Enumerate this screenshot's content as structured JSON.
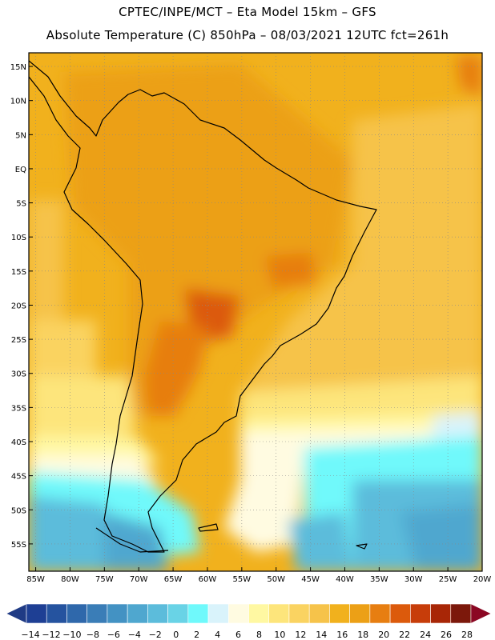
{
  "title": {
    "line1": "CPTEC/INPE/MCT –  Eta Model 15km – GFS",
    "line2": "Absolute Temperature (C) 850hPa – 08/03/2021 12UTC fct=261h"
  },
  "map": {
    "lat_labels": [
      "15N",
      "10N",
      "5N",
      "EQ",
      "5S",
      "10S",
      "15S",
      "20S",
      "25S",
      "30S",
      "35S",
      "40S",
      "45S",
      "50S",
      "55S"
    ],
    "lon_labels": [
      "85W",
      "80W",
      "75W",
      "70W",
      "65W",
      "60W",
      "55W",
      "50W",
      "45W",
      "40W",
      "35W",
      "30W",
      "25W",
      "20W"
    ],
    "lat_range": [
      17,
      -59
    ],
    "lon_range": [
      -86,
      -20
    ],
    "gridlines": true
  },
  "colorbar": {
    "labels": [
      "-14",
      "-12",
      "-10",
      "-8",
      "-6",
      "-4",
      "-2",
      "0",
      "2",
      "4",
      "6",
      "8",
      "10",
      "12",
      "14",
      "16",
      "18",
      "20",
      "22",
      "24",
      "26",
      "28"
    ],
    "colors": [
      "#1e3f94",
      "#25539f",
      "#2f68ab",
      "#3a7db7",
      "#4392c3",
      "#4fa7cf",
      "#5cbcdb",
      "#69d3e6",
      "#6ff9fb",
      "#d9f3fb",
      "#fffbe1",
      "#fff8a2",
      "#fde57b",
      "#fad361",
      "#f6c34a",
      "#f1b11d",
      "#eca016",
      "#e77e11",
      "#dc5a0c",
      "#c73d0a",
      "#a82606",
      "#7c180b"
    ],
    "left_arrow_color": "#203b85",
    "right_arrow_color": "#8b0723"
  }
}
